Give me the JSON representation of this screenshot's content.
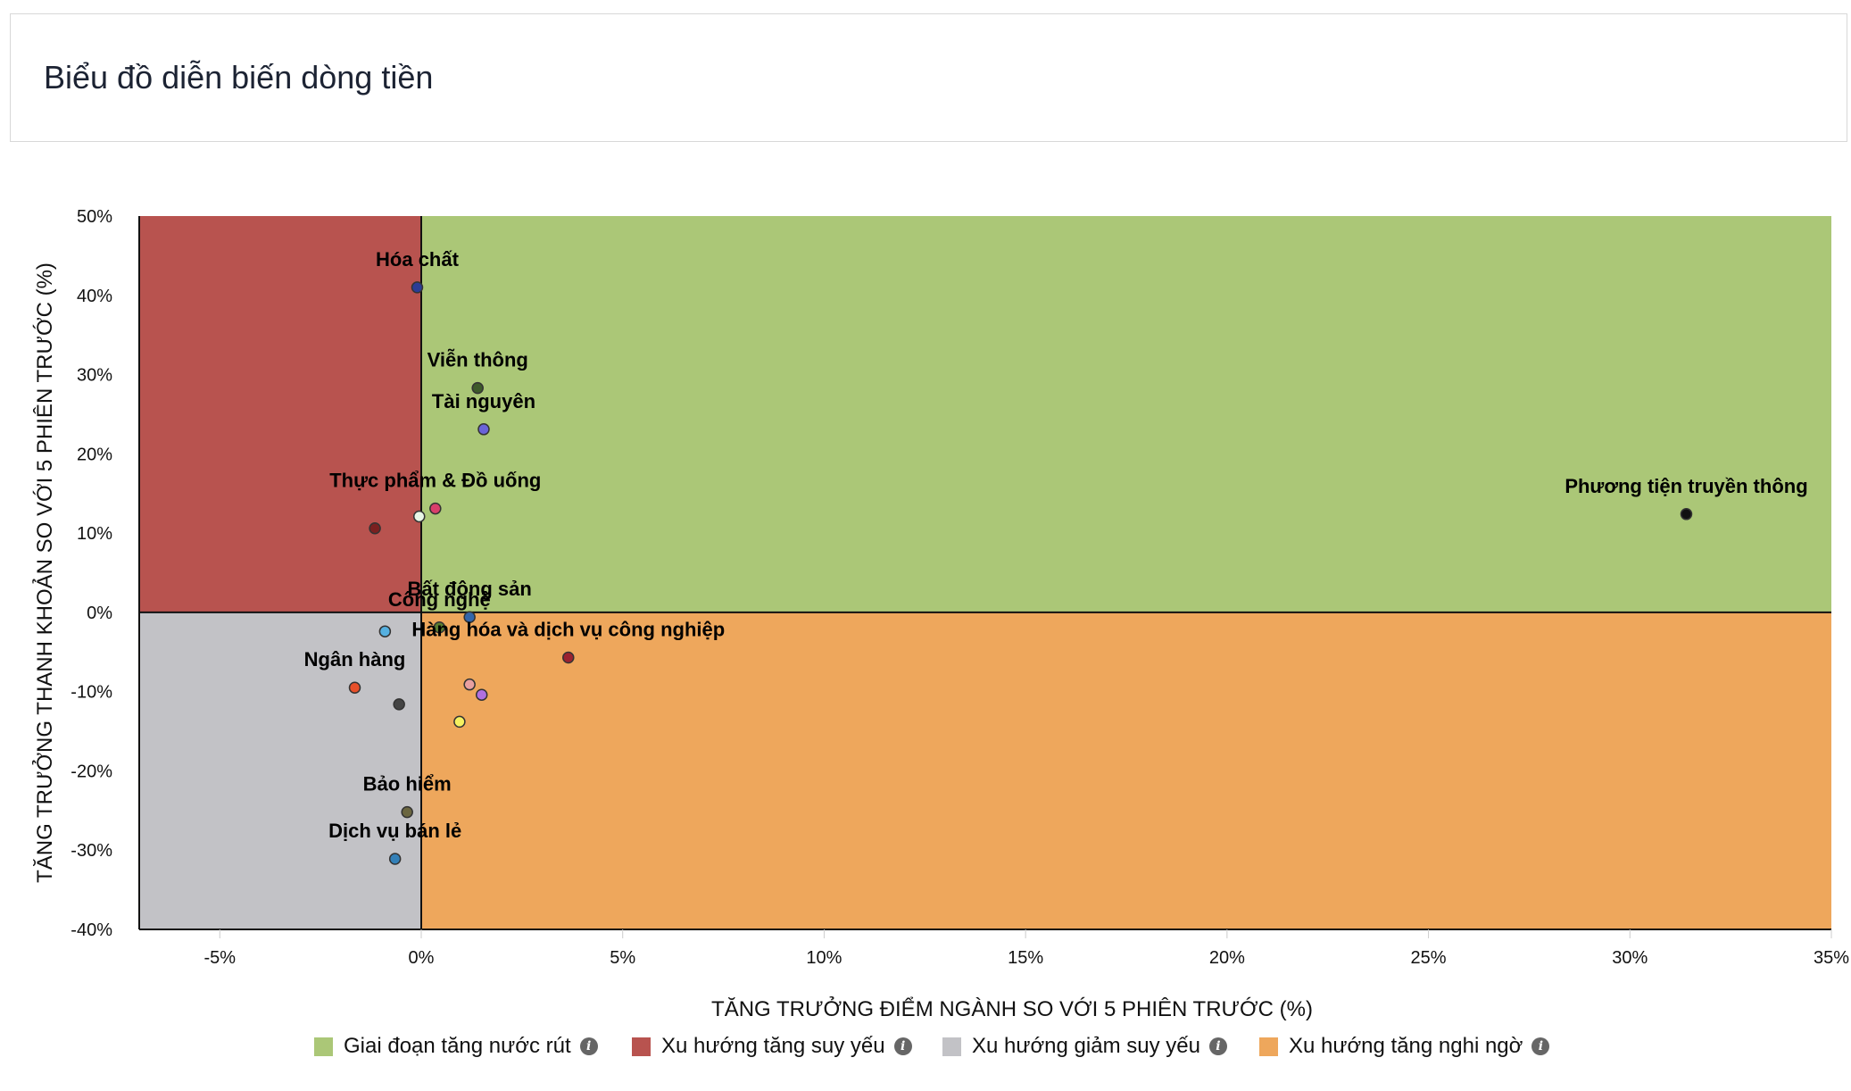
{
  "header": {
    "title": "Biểu đồ diễn biến dòng tiền"
  },
  "legend": [
    {
      "label": "Giai đoạn tăng nước rút",
      "color": "#abc777",
      "icon": "info-icon"
    },
    {
      "label": "Xu hướng tăng suy yếu",
      "color": "#b8534f",
      "icon": "info-icon"
    },
    {
      "label": "Xu hướng giảm suy yếu",
      "color": "#c2c2c6",
      "icon": "info-icon"
    },
    {
      "label": "Xu hướng tăng nghi ngờ",
      "color": "#eea75c",
      "icon": "info-icon"
    }
  ],
  "chart_data": {
    "type": "scatter",
    "xlabel": "TĂNG TRƯỞNG ĐIỂM NGÀNH SO VỚI 5 PHIÊN TRƯỚC (%)",
    "ylabel": "TĂNG TRƯỞNG THANH KHOẢN SO VỚI 5 PHIÊN TRƯỚC (%)",
    "xlim": [
      -7,
      35
    ],
    "ylim": [
      -40,
      50
    ],
    "xticks": [
      -5,
      0,
      5,
      10,
      15,
      20,
      25,
      30,
      35
    ],
    "xtick_labels": [
      "-5%",
      "0%",
      "5%",
      "10%",
      "15%",
      "20%",
      "25%",
      "30%",
      "35%"
    ],
    "yticks": [
      -40,
      -30,
      -20,
      -10,
      0,
      10,
      20,
      30,
      40,
      50
    ],
    "ytick_labels": [
      "-40%",
      "-30%",
      "-20%",
      "-10%",
      "0%",
      "10%",
      "20%",
      "30%",
      "40%",
      "50%"
    ],
    "quadrants": [
      {
        "name": "Giai đoạn tăng nước rút",
        "x": [
          0,
          35
        ],
        "y": [
          0,
          50
        ],
        "color": "#abc777"
      },
      {
        "name": "Xu hướng tăng suy yếu",
        "x": [
          -7,
          0
        ],
        "y": [
          0,
          50
        ],
        "color": "#b8534f"
      },
      {
        "name": "Xu hướng giảm suy yếu",
        "x": [
          -7,
          0
        ],
        "y": [
          -40,
          0
        ],
        "color": "#c2c2c6"
      },
      {
        "name": "Xu hướng tăng nghi ngờ",
        "x": [
          0,
          35
        ],
        "y": [
          -40,
          0
        ],
        "color": "#eea75c"
      }
    ],
    "points": [
      {
        "label": "Hóa chất",
        "x": -0.1,
        "y": 41.0,
        "color": "#2b3d96"
      },
      {
        "label": "Viễn thông",
        "x": 1.4,
        "y": 28.3,
        "color": "#3d5a2a"
      },
      {
        "label": "Tài nguyên",
        "x": 1.55,
        "y": 23.1,
        "color": "#6a63d8"
      },
      {
        "label": "Phương tiện truyền thông",
        "x": 31.4,
        "y": 12.4,
        "color": "#111111"
      },
      {
        "label": "",
        "x": -1.15,
        "y": 10.6,
        "color": "#7a2020"
      },
      {
        "label": "",
        "x": -0.05,
        "y": 12.1,
        "color": "#e8f6e6"
      },
      {
        "label": "Thực phẩm & Đồ uống",
        "x": 0.35,
        "y": 13.1,
        "color": "#d9406b"
      },
      {
        "label": "Bất động sản",
        "x": 1.2,
        "y": -0.6,
        "color": "#3366aa"
      },
      {
        "label": "Công nghệ",
        "x": 0.45,
        "y": -1.9,
        "color": "#5a7d30"
      },
      {
        "label": "",
        "x": -0.9,
        "y": -2.4,
        "color": "#55b0e0"
      },
      {
        "label": "Hàng hóa và dịch vụ công nghiệp",
        "x": 3.65,
        "y": -5.7,
        "color": "#9b2230"
      },
      {
        "label": "Ngân hàng",
        "x": -1.65,
        "y": -9.5,
        "color": "#e8502a"
      },
      {
        "label": "",
        "x": -0.55,
        "y": -11.6,
        "color": "#444444"
      },
      {
        "label": "",
        "x": 1.2,
        "y": -9.1,
        "color": "#e8a0a0"
      },
      {
        "label": "",
        "x": 1.5,
        "y": -10.4,
        "color": "#b070e0"
      },
      {
        "label": "",
        "x": 0.95,
        "y": -13.8,
        "color": "#f5f060"
      },
      {
        "label": "Bảo hiểm",
        "x": -0.35,
        "y": -25.2,
        "color": "#6b6640"
      },
      {
        "label": "Dịch vụ bán lẻ",
        "x": -0.65,
        "y": -31.1,
        "color": "#3380b8"
      }
    ]
  }
}
